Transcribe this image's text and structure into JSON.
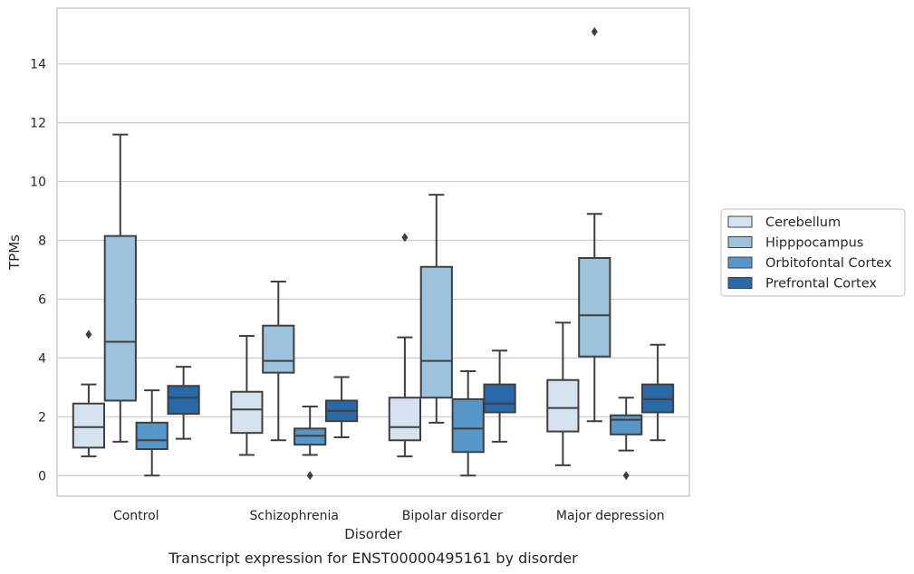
{
  "caption": "Transcript expression for ENST00000495161 by disorder",
  "chart_data": {
    "type": "box",
    "xlabel": "Disorder",
    "ylabel": "TPMs",
    "ylim": [
      -0.7,
      15.9
    ],
    "yticks": [
      0,
      2,
      4,
      6,
      8,
      10,
      12,
      14
    ],
    "grid": "horizontal",
    "legend_position": "right",
    "categories": [
      "Control",
      "Schizophrenia",
      "Bipolar disorder",
      "Major depression"
    ],
    "series": [
      {
        "name": "Cerebellum",
        "color": "#d5e3f1",
        "boxes": [
          {
            "whislo": 0.65,
            "q1": 0.95,
            "med": 1.65,
            "q3": 2.45,
            "whishi": 3.1,
            "fliers": []
          },
          {
            "whislo": 0.7,
            "q1": 1.45,
            "med": 2.25,
            "q3": 2.85,
            "whishi": 4.75,
            "fliers": []
          },
          {
            "whislo": 0.65,
            "q1": 1.2,
            "med": 1.65,
            "q3": 2.65,
            "whishi": 4.7,
            "fliers": []
          },
          {
            "whislo": 0.35,
            "q1": 1.5,
            "med": 2.3,
            "q3": 3.25,
            "whishi": 5.2,
            "fliers": []
          }
        ]
      },
      {
        "name": "Hipppocampus",
        "color": "#9cc2dc",
        "boxes": [
          {
            "whislo": 1.15,
            "q1": 2.55,
            "med": 4.55,
            "q3": 8.15,
            "whishi": 11.6,
            "fliers": []
          },
          {
            "whislo": 1.2,
            "q1": 3.5,
            "med": 3.9,
            "q3": 5.1,
            "whishi": 6.6,
            "fliers": []
          },
          {
            "whislo": 1.8,
            "q1": 2.65,
            "med": 3.9,
            "q3": 7.1,
            "whishi": 9.55,
            "fliers": []
          },
          {
            "whislo": 1.85,
            "q1": 4.05,
            "med": 5.45,
            "q3": 7.4,
            "whishi": 8.9,
            "fliers": []
          }
        ]
      },
      {
        "name": "Orbitofontal Cortex",
        "color": "#5796c8",
        "boxes": [
          {
            "whislo": 0.0,
            "q1": 0.9,
            "med": 1.2,
            "q3": 1.8,
            "whishi": 2.9,
            "fliers": []
          },
          {
            "whislo": 0.7,
            "q1": 1.05,
            "med": 1.35,
            "q3": 1.6,
            "whishi": 2.35,
            "fliers": [
              0.0
            ]
          },
          {
            "whislo": 0.0,
            "q1": 0.8,
            "med": 1.6,
            "q3": 2.6,
            "whishi": 3.55,
            "fliers": []
          },
          {
            "whislo": 0.85,
            "q1": 1.4,
            "med": 1.9,
            "q3": 2.05,
            "whishi": 2.65,
            "fliers": [
              0.0
            ]
          }
        ]
      },
      {
        "name": "Prefrontal Cortex",
        "color": "#2a69a8",
        "boxes": [
          {
            "whislo": 1.25,
            "q1": 2.1,
            "med": 2.65,
            "q3": 3.05,
            "whishi": 3.7,
            "fliers": []
          },
          {
            "whislo": 1.3,
            "q1": 1.85,
            "med": 2.2,
            "q3": 2.55,
            "whishi": 3.35,
            "fliers": []
          },
          {
            "whislo": 1.15,
            "q1": 2.15,
            "med": 2.45,
            "q3": 3.1,
            "whishi": 4.25,
            "fliers": []
          },
          {
            "whislo": 1.2,
            "q1": 2.15,
            "med": 2.6,
            "q3": 3.1,
            "whishi": 4.45,
            "fliers": []
          }
        ]
      }
    ],
    "extra_fliers": [
      {
        "category": 0,
        "series": 0,
        "value": 4.8
      },
      {
        "category": 2,
        "series": 0,
        "value": 8.1
      },
      {
        "category": 3,
        "series": 1,
        "value": 15.1
      }
    ]
  }
}
